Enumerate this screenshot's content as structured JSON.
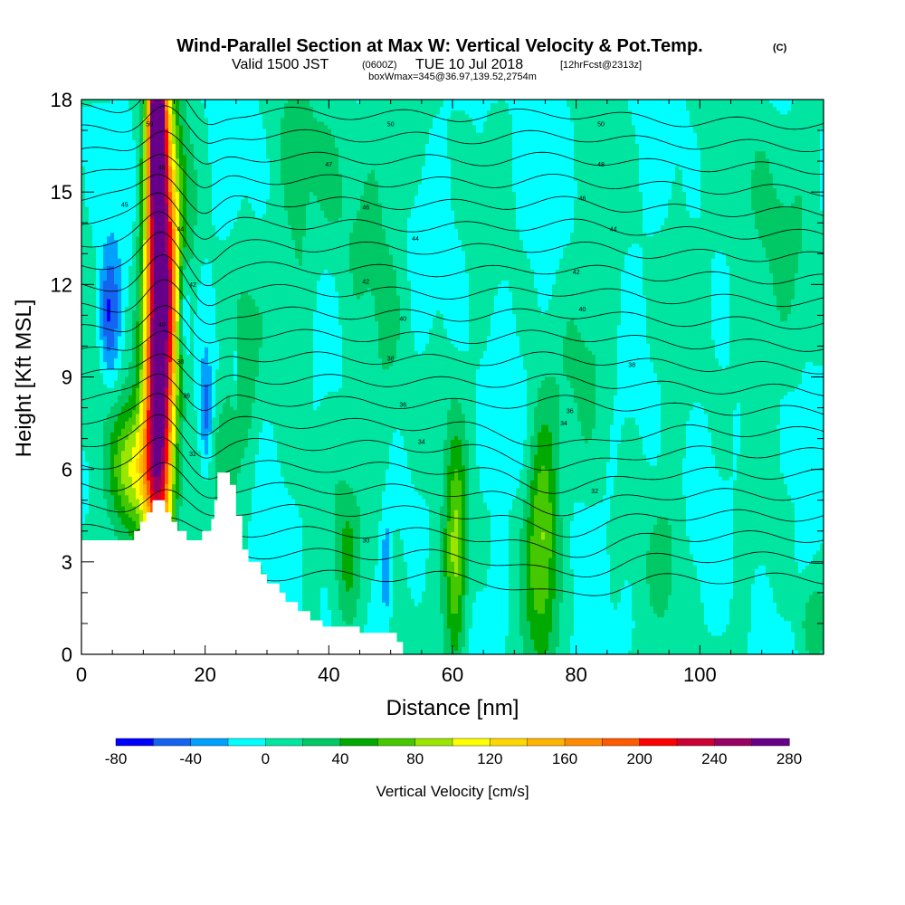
{
  "title": {
    "main": "Wind-Parallel Section at Max W: Vertical Velocity & Pot.Temp.",
    "main_tag": "(C)",
    "sub_a": "Valid 1500 JST",
    "sub_b": "(0600Z)",
    "sub_c": "TUE 10 Jul 2018",
    "sub_d": "[12hrFcst@2313z]",
    "box": "boxWmax=345@36.97,139.52,2754m"
  },
  "chart_data": {
    "type": "heatmap",
    "xlabel": "Distance [nm]",
    "ylabel": "Height [Kft MSL]",
    "xlim": [
      0,
      120
    ],
    "ylim": [
      0,
      18
    ],
    "x_ticks": [
      0,
      20,
      40,
      60,
      80,
      100
    ],
    "y_ticks": [
      0,
      3,
      6,
      9,
      12,
      15,
      18
    ],
    "colorbar": {
      "label": "Vertical Velocity [cm/s]",
      "levels": [
        -80,
        -60,
        -40,
        -20,
        0,
        20,
        40,
        60,
        80,
        100,
        120,
        140,
        160,
        180,
        200,
        220,
        240,
        260,
        280,
        300
      ],
      "tick_labels": [
        "-80",
        "-40",
        "0",
        "40",
        "80",
        "120",
        "160",
        "200",
        "240",
        "280"
      ],
      "tick_values": [
        -80,
        -40,
        0,
        40,
        80,
        120,
        160,
        200,
        240,
        280
      ],
      "colors": [
        "#0000ff",
        "#1464f0",
        "#00a0ff",
        "#00ffff",
        "#00e6a0",
        "#00c864",
        "#00aa00",
        "#46c800",
        "#9be600",
        "#ffff00",
        "#ffd700",
        "#ffb400",
        "#ff8c00",
        "#ff5a00",
        "#ff0000",
        "#cc0033",
        "#990066",
        "#660088",
        "#660088"
      ]
    },
    "background_value": 0,
    "updrafts": [
      {
        "x": 12.5,
        "y": 11.0,
        "sx": 1.6,
        "sy": 6.5,
        "w": 300
      },
      {
        "x": 12.2,
        "y": 17.0,
        "sx": 0.8,
        "sy": 1.5,
        "w": 230
      },
      {
        "x": 8.5,
        "y": 6.0,
        "sx": 2.8,
        "sy": 1.5,
        "w": 100
      },
      {
        "x": 15.5,
        "y": 12.0,
        "sx": 1.6,
        "sy": 3.0,
        "w": 90
      },
      {
        "x": 23.0,
        "y": 6.5,
        "sx": 1.4,
        "sy": 1.5,
        "w": 45
      },
      {
        "x": 26.0,
        "y": 9.5,
        "sx": 1.5,
        "sy": 2.0,
        "w": 35
      },
      {
        "x": 60.5,
        "y": 3.0,
        "sx": 1.3,
        "sy": 2.5,
        "w": 90
      },
      {
        "x": 74.5,
        "y": 3.8,
        "sx": 1.9,
        "sy": 2.8,
        "w": 80
      },
      {
        "x": 43.0,
        "y": 3.0,
        "sx": 1.5,
        "sy": 1.8,
        "w": 35
      },
      {
        "x": 35.0,
        "y": 10.5,
        "sx": 1.5,
        "sy": 3.5,
        "w": 22
      },
      {
        "x": 49.0,
        "y": 8.5,
        "sx": 3.0,
        "sy": 4.0,
        "w": 18
      },
      {
        "x": 40.0,
        "y": 15.5,
        "sx": 6.0,
        "sy": 2.5,
        "w": 22
      },
      {
        "x": 83.0,
        "y": 10.0,
        "sx": 3.0,
        "sy": 2.5,
        "w": 22
      },
      {
        "x": 95.0,
        "y": 3.0,
        "sx": 2.0,
        "sy": 2.0,
        "w": 22
      },
      {
        "x": 118.0,
        "y": 1.0,
        "sx": 1.5,
        "sy": 1.0,
        "w": 35
      },
      {
        "x": 2.0,
        "y": 8.0,
        "sx": 1.8,
        "sy": 1.8,
        "w": 25
      },
      {
        "x": 110.0,
        "y": 14.0,
        "sx": 5.0,
        "sy": 3.0,
        "w": 22
      }
    ],
    "downdrafts": [
      {
        "x": 4.5,
        "y": 11.0,
        "sx": 1.2,
        "sy": 1.5,
        "w": -60
      },
      {
        "x": 16.5,
        "y": 11.3,
        "sx": 0.8,
        "sy": 1.6,
        "w": -80
      },
      {
        "x": 20.2,
        "y": 7.8,
        "sx": 0.6,
        "sy": 1.2,
        "w": -45
      },
      {
        "x": 24.8,
        "y": 9.3,
        "sx": 0.5,
        "sy": 1.0,
        "w": -35
      },
      {
        "x": 49.3,
        "y": 2.7,
        "sx": 0.6,
        "sy": 1.2,
        "w": -45
      }
    ],
    "terrain": [
      [
        0,
        3.7
      ],
      [
        8.5,
        3.7
      ],
      [
        8.5,
        4.0
      ],
      [
        9.5,
        4.0
      ],
      [
        9.5,
        4.3
      ],
      [
        10.5,
        4.3
      ],
      [
        10.5,
        4.6
      ],
      [
        11.5,
        4.6
      ],
      [
        11.5,
        5.0
      ],
      [
        13.5,
        5.0
      ],
      [
        13.5,
        4.6
      ],
      [
        14.5,
        4.6
      ],
      [
        14.5,
        4.3
      ],
      [
        15.5,
        4.3
      ],
      [
        15.5,
        4.0
      ],
      [
        17.0,
        4.0
      ],
      [
        17.0,
        3.7
      ],
      [
        19.5,
        3.7
      ],
      [
        19.5,
        4.0
      ],
      [
        21.0,
        4.0
      ],
      [
        21.0,
        4.4
      ],
      [
        21.5,
        4.4
      ],
      [
        21.5,
        5.0
      ],
      [
        22.0,
        5.0
      ],
      [
        22.0,
        5.9
      ],
      [
        24.0,
        5.9
      ],
      [
        24.0,
        5.5
      ],
      [
        25.0,
        5.5
      ],
      [
        25.0,
        4.5
      ],
      [
        26.0,
        4.5
      ],
      [
        26.0,
        3.4
      ],
      [
        27.0,
        3.4
      ],
      [
        27.0,
        3.0
      ],
      [
        29.0,
        3.0
      ],
      [
        29.0,
        2.6
      ],
      [
        30.0,
        2.6
      ],
      [
        30.0,
        2.3
      ],
      [
        32.0,
        2.3
      ],
      [
        32.0,
        2.0
      ],
      [
        33.0,
        2.0
      ],
      [
        33.0,
        1.7
      ],
      [
        35.0,
        1.7
      ],
      [
        35.0,
        1.4
      ],
      [
        37.0,
        1.4
      ],
      [
        37.0,
        1.1
      ],
      [
        39.0,
        1.1
      ],
      [
        39.0,
        0.9
      ],
      [
        45.0,
        0.9
      ],
      [
        45.0,
        0.7
      ],
      [
        51.0,
        0.7
      ],
      [
        51.0,
        0.4
      ],
      [
        52.0,
        0.4
      ],
      [
        52.0,
        0.0
      ],
      [
        0,
        0.0
      ]
    ],
    "theta_levels": [
      30,
      31,
      32,
      33,
      34,
      35,
      36,
      37,
      38,
      39,
      40,
      41,
      42,
      43,
      44,
      45,
      46,
      47,
      48,
      49,
      50,
      51
    ],
    "theta_base_height": 2.6,
    "theta_spacing": 0.72,
    "theta_labels": [
      {
        "text": "30",
        "x": 46,
        "y": 3.7
      },
      {
        "text": "32",
        "x": 83,
        "y": 5.3
      },
      {
        "text": "32",
        "x": 18,
        "y": 6.5
      },
      {
        "text": "34",
        "x": 55,
        "y": 6.9
      },
      {
        "text": "34",
        "x": 78,
        "y": 7.5
      },
      {
        "text": "36",
        "x": 17,
        "y": 8.4
      },
      {
        "text": "36",
        "x": 52,
        "y": 8.1
      },
      {
        "text": "36",
        "x": 79,
        "y": 7.9
      },
      {
        "text": "38",
        "x": 16,
        "y": 9.5
      },
      {
        "text": "38",
        "x": 50,
        "y": 9.6
      },
      {
        "text": "38",
        "x": 89,
        "y": 9.4
      },
      {
        "text": "40",
        "x": 13,
        "y": 10.7
      },
      {
        "text": "40",
        "x": 52,
        "y": 10.9
      },
      {
        "text": "40",
        "x": 81,
        "y": 11.2
      },
      {
        "text": "42",
        "x": 18,
        "y": 12.0
      },
      {
        "text": "42",
        "x": 46,
        "y": 12.1
      },
      {
        "text": "42",
        "x": 80,
        "y": 12.4
      },
      {
        "text": "44",
        "x": 16,
        "y": 13.8
      },
      {
        "text": "44",
        "x": 54,
        "y": 13.5
      },
      {
        "text": "44",
        "x": 86,
        "y": 13.8
      },
      {
        "text": "45",
        "x": 7,
        "y": 14.6
      },
      {
        "text": "46",
        "x": 46,
        "y": 14.5
      },
      {
        "text": "46",
        "x": 81,
        "y": 14.8
      },
      {
        "text": "47",
        "x": 40,
        "y": 15.9
      },
      {
        "text": "48",
        "x": 84,
        "y": 15.9
      },
      {
        "text": "48",
        "x": 13,
        "y": 15.8
      },
      {
        "text": "50",
        "x": 50,
        "y": 17.2
      },
      {
        "text": "50",
        "x": 84,
        "y": 17.2
      },
      {
        "text": "50",
        "x": 11,
        "y": 17.2
      }
    ]
  }
}
